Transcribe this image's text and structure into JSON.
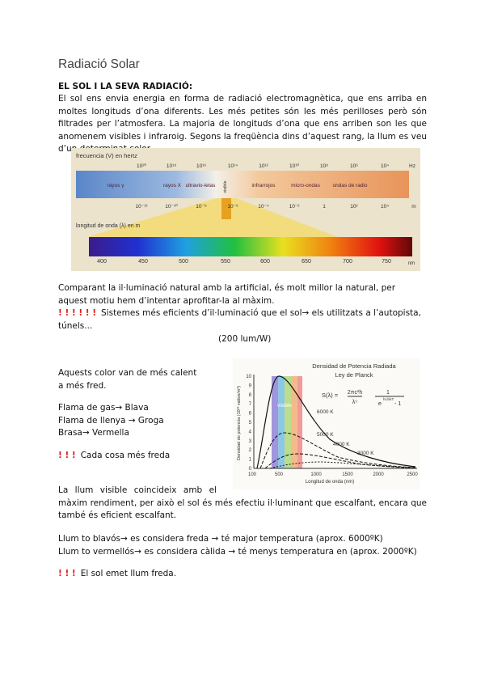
{
  "title": "Radiació Solar",
  "heading": "EL SOL I LA SEVA RADIACIÓ:",
  "intro": "El sol ens envia energia en forma de radiació electromagnètica, que ens arriba en moltes longituds d’ona diferents. Les més petites són les més perilloses però són filtrades per l’atmosfera. La majoria de longituds d’ona que ens arriben son les que anomenem visibles i infraroig. Segons la freqüència dins d’aquest rang, la llum es veu d’un determinat color.",
  "spectrum_figure": {
    "frequency_label": "frecuencia (V) en hertz",
    "frequencies": [
      "10²⁰",
      "10¹⁸",
      "10¹⁶",
      "10¹⁴",
      "10¹²",
      "10¹⁰",
      "10⁸",
      "10⁶",
      "10⁴"
    ],
    "frequency_unit": "Hz",
    "bands": [
      "rayos γ",
      "rayos X",
      "ultravio-letas",
      "visible",
      "infrarrojos",
      "micro-ondas",
      "ondas de radio"
    ],
    "wavelengths": [
      "10⁻¹²",
      "10⁻¹⁰",
      "10⁻⁸",
      "10⁻⁶",
      "10⁻⁴",
      "10⁻²",
      "1",
      "10²",
      "10⁴"
    ],
    "wavelength_unit": "m",
    "wavelength_label": "longitud de onda (λ) en m",
    "visible_ticks": [
      "400",
      "450",
      "500",
      "550",
      "600",
      "650",
      "700",
      "750"
    ],
    "visible_unit": "nm"
  },
  "comparison": "Comparant la il·luminació natural amb la artificial, és molt millor la natural, per aquest motiu hem d’intentar aprofitar-la al màxim.",
  "warning_1": {
    "marks": "! ! ! ! ! !",
    "text": "Sistemes més eficients d’il·luminació que el sol→ els utilitzats a l’autopista, túnels..."
  },
  "efficiency": "(200 lum/W)",
  "colors_intro": "Aquests color van de més calent a més fred.",
  "flames": [
    "Flama de gas→ Blava",
    "Flama de llenya → Groga",
    "Brasa→ Vermella"
  ],
  "warning_2": {
    "marks": "! ! !",
    "text": "Cada cosa més freda"
  },
  "planck_figure": {
    "title": "Densidad de Potencia Radiada",
    "subtitle": "Ley de Planck",
    "formula": {
      "lhs": "S(λ) =",
      "num1": "2πc²h",
      "den1": "λ⁵",
      "num2": "1",
      "den2": "e",
      "exponent": "hc/λkT",
      "minus": "- 1"
    },
    "y_label": "Densidad de potencia (10¹³ vatios/m³)",
    "x_label": "Longitud de onda (nm)",
    "yticks": [
      "0",
      "1",
      "2",
      "3",
      "4",
      "5",
      "6",
      "7",
      "8",
      "9",
      "10"
    ],
    "xticks": [
      "100",
      "500",
      "1000",
      "1500",
      "2000",
      "2500"
    ],
    "visible_label": "visible",
    "curves": [
      "6000 K",
      "5000 K",
      "4000 K",
      "3000 K"
    ]
  },
  "visible_light": "La llum visible coincideix amb el màxim rendiment, per això el sol és més efectiu il·luminant que escalfant, encara que també és eficient escalfant.",
  "light_tones": [
    "Llum to blavós→ es considera freda → té major temperatura (aprox. 6000ºK)",
    "Llum to vermellós→ es considera càlida → té menys temperatura en (aprox. 2000ºK)"
  ],
  "warning_3": {
    "marks": "! ! !",
    "text": "El sol emet llum freda."
  }
}
